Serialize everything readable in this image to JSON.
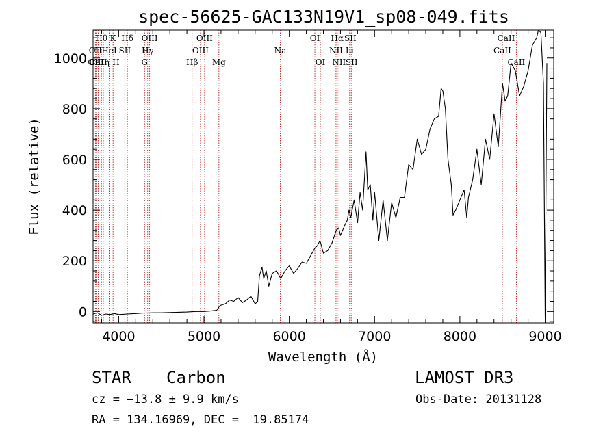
{
  "info": {
    "object_class": "STAR",
    "subclass": "Carbon",
    "survey": "LAMOST DR3",
    "redshift": "cz = −13.8 ± 9.9 km/s",
    "obs_date": "Obs-Date: 20131128",
    "coords": "RA = 134.16969, DEC =  19.85174"
  },
  "chart_data": {
    "type": "line",
    "title": "spec-56625-GAC133N19V1_sp08-049.fits",
    "xlabel": "Wavelength (Å)",
    "ylabel": "Flux (relative)",
    "xlim": [
      3700,
      9100
    ],
    "ylim": [
      -45,
      1110
    ],
    "xticks": [
      4000,
      5000,
      6000,
      7000,
      8000,
      9000
    ],
    "yticks": [
      0,
      200,
      400,
      600,
      800,
      1000
    ],
    "line_color": "#000000",
    "marker_color": "#b22222",
    "series": [
      {
        "name": "flux",
        "x": [
          3700,
          3750,
          3800,
          3850,
          3900,
          3950,
          4000,
          4100,
          4200,
          4300,
          4400,
          4500,
          4600,
          4700,
          4800,
          4900,
          5000,
          5080,
          5150,
          5180,
          5200,
          5250,
          5300,
          5350,
          5400,
          5450,
          5500,
          5550,
          5600,
          5630,
          5650,
          5680,
          5700,
          5730,
          5760,
          5800,
          5850,
          5900,
          5950,
          6000,
          6050,
          6100,
          6150,
          6200,
          6250,
          6300,
          6330,
          6360,
          6400,
          6450,
          6500,
          6550,
          6580,
          6600,
          6650,
          6680,
          6700,
          6720,
          6760,
          6800,
          6830,
          6860,
          6900,
          6920,
          6950,
          6980,
          7000,
          7050,
          7100,
          7150,
          7200,
          7250,
          7300,
          7350,
          7400,
          7450,
          7500,
          7550,
          7600,
          7650,
          7700,
          7750,
          7780,
          7800,
          7830,
          7860,
          7900,
          7920,
          7950,
          8000,
          8050,
          8080,
          8100,
          8150,
          8200,
          8250,
          8300,
          8350,
          8400,
          8450,
          8500,
          8530,
          8560,
          8600,
          8650,
          8700,
          8750,
          8800,
          8850,
          8900,
          8920,
          8950,
          8980,
          9000,
          9010,
          9020
        ],
        "y": [
          -10,
          -5,
          -15,
          -10,
          -12,
          -8,
          -12,
          -10,
          -8,
          -6,
          -5,
          -5,
          -4,
          -3,
          -2,
          0,
          0,
          2,
          5,
          20,
          25,
          30,
          45,
          40,
          55,
          35,
          45,
          60,
          30,
          40,
          140,
          175,
          130,
          160,
          100,
          150,
          160,
          130,
          160,
          180,
          150,
          170,
          195,
          190,
          220,
          250,
          260,
          280,
          230,
          240,
          270,
          320,
          330,
          300,
          340,
          360,
          400,
          370,
          440,
          350,
          470,
          400,
          630,
          480,
          500,
          360,
          470,
          280,
          440,
          280,
          430,
          370,
          450,
          450,
          580,
          560,
          680,
          620,
          640,
          720,
          760,
          770,
          880,
          870,
          800,
          600,
          500,
          380,
          400,
          440,
          480,
          370,
          450,
          520,
          640,
          500,
          680,
          600,
          780,
          650,
          900,
          830,
          850,
          980,
          950,
          850,
          890,
          950,
          1050,
          1080,
          1110,
          1100,
          900,
          -20,
          500,
          980
        ]
      }
    ],
    "lines": [
      {
        "wave": 3727,
        "label": "OII",
        "row": 1
      },
      {
        "wave": 3735,
        "label": "OIII",
        "row": 2
      },
      {
        "wave": 3760,
        "label": "CaII",
        "row": 2
      },
      {
        "wave": 3798,
        "label": "Hθ",
        "row": 0
      },
      {
        "wave": 3820,
        "label": "Hη",
        "row": 2
      },
      {
        "wave": 3889,
        "label": "HeI",
        "row": 1
      },
      {
        "wave": 3934,
        "label": "K",
        "row": 0
      },
      {
        "wave": 3969,
        "label": "H",
        "row": 2
      },
      {
        "wave": 4072,
        "label": "SII",
        "row": 1
      },
      {
        "wave": 4102,
        "label": "Hδ",
        "row": 0
      },
      {
        "wave": 4304,
        "label": "G",
        "row": 2
      },
      {
        "wave": 4340,
        "label": "Hγ",
        "row": 1
      },
      {
        "wave": 4363,
        "label": "OIII",
        "row": 0
      },
      {
        "wave": 4861,
        "label": "Hβ",
        "row": 2
      },
      {
        "wave": 4959,
        "label": "OIII",
        "row": 1
      },
      {
        "wave": 5007,
        "label": "OIII",
        "row": 0
      },
      {
        "wave": 5175,
        "label": "Mg",
        "row": 2
      },
      {
        "wave": 5894,
        "label": "Na",
        "row": 1
      },
      {
        "wave": 6300,
        "label": "OI",
        "row": 0
      },
      {
        "wave": 6364,
        "label": "OI",
        "row": 2
      },
      {
        "wave": 6548,
        "label": "NII",
        "row": 1
      },
      {
        "wave": 6563,
        "label": "Hα",
        "row": 0
      },
      {
        "wave": 6583,
        "label": "NII",
        "row": 2
      },
      {
        "wave": 6707,
        "label": "Li",
        "row": 1
      },
      {
        "wave": 6716,
        "label": "SII",
        "row": 0
      },
      {
        "wave": 6731,
        "label": "SII",
        "row": 2
      },
      {
        "wave": 8498,
        "label": "CaII",
        "row": 1
      },
      {
        "wave": 8542,
        "label": "CaII",
        "row": 0
      },
      {
        "wave": 8662,
        "label": "CaII",
        "row": 2
      }
    ]
  }
}
